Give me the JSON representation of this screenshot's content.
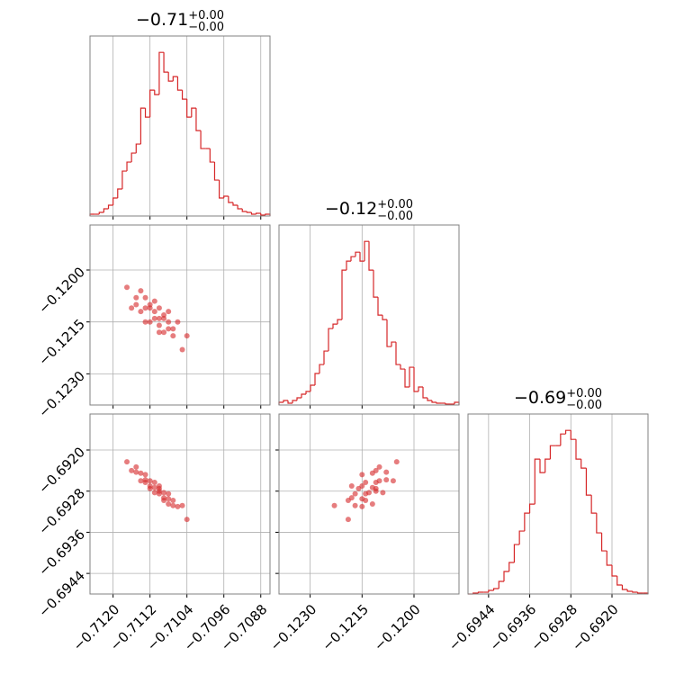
{
  "chart_data": {
    "type": "corner",
    "color": "#d62728",
    "grid": true,
    "params": [
      {
        "title": "−0.71",
        "err_plus": "+0.00",
        "err_minus": "−0.00",
        "lim": [
          -0.7125,
          -0.7086
        ],
        "ticks": [
          {
            "value": -0.712,
            "label": "−0.7120"
          },
          {
            "value": -0.7112,
            "label": "−0.7112"
          },
          {
            "value": -0.7104,
            "label": "−0.7104"
          },
          {
            "value": -0.7096,
            "label": "−0.7096"
          },
          {
            "value": -0.7088,
            "label": "−0.7088"
          }
        ],
        "bins": [
          -0.7125,
          -0.7124,
          -0.7123,
          -0.7122,
          -0.7121,
          -0.712,
          -0.7119,
          -0.7118,
          -0.7117,
          -0.7116,
          -0.7115,
          -0.7114,
          -0.7113,
          -0.7112,
          -0.7111,
          -0.711,
          -0.7109,
          -0.7108,
          -0.7107,
          -0.7106,
          -0.7105,
          -0.7104,
          -0.7103,
          -0.7102,
          -0.7101,
          -0.71,
          -0.7099,
          -0.7098,
          -0.7097,
          -0.7096,
          -0.7095,
          -0.7094,
          -0.7093,
          -0.7092,
          -0.7091,
          -0.709,
          -0.7089,
          -0.7088,
          -0.7087,
          -0.7086
        ],
        "counts": [
          2,
          2,
          4,
          8,
          12,
          20,
          30,
          50,
          60,
          70,
          80,
          120,
          110,
          140,
          135,
          182,
          160,
          150,
          155,
          140,
          130,
          110,
          120,
          95,
          75,
          75,
          60,
          40,
          20,
          22,
          15,
          12,
          8,
          5,
          4,
          2,
          3,
          1,
          2
        ],
        "samples": [
          -0.7117,
          -0.7116,
          -0.7115,
          -0.7115,
          -0.7114,
          -0.7114,
          -0.7113,
          -0.7113,
          -0.7113,
          -0.7112,
          -0.7112,
          -0.7112,
          -0.7111,
          -0.7111,
          -0.7111,
          -0.711,
          -0.711,
          -0.711,
          -0.711,
          -0.7109,
          -0.7109,
          -0.7109,
          -0.7108,
          -0.7108,
          -0.7108,
          -0.7107,
          -0.7107,
          -0.7106,
          -0.7105,
          -0.7104
        ]
      },
      {
        "title": "−0.12",
        "err_plus": "+0.00",
        "err_minus": "−0.00",
        "lim": [
          -0.1239,
          -0.1187
        ],
        "ticks": [
          {
            "value": -0.123,
            "label": "−0.1230"
          },
          {
            "value": -0.1215,
            "label": "−0.1215"
          },
          {
            "value": -0.12,
            "label": "−0.1200"
          }
        ],
        "bins": [
          -0.1239,
          -0.12377,
          -0.12364,
          -0.12351,
          -0.12338,
          -0.12325,
          -0.12312,
          -0.12299,
          -0.12286,
          -0.12273,
          -0.1226,
          -0.12247,
          -0.12234,
          -0.12221,
          -0.12208,
          -0.12195,
          -0.12182,
          -0.12169,
          -0.12156,
          -0.12143,
          -0.1213,
          -0.12117,
          -0.12104,
          -0.12091,
          -0.12078,
          -0.12065,
          -0.12052,
          -0.12039,
          -0.12026,
          -0.12013,
          -0.12,
          -0.11987,
          -0.11974,
          -0.11961,
          -0.11948,
          -0.11935,
          -0.11922,
          -0.11909,
          -0.11896,
          -0.11883,
          -0.1187
        ],
        "counts": [
          3,
          5,
          2,
          5,
          8,
          12,
          15,
          22,
          35,
          45,
          60,
          85,
          90,
          95,
          150,
          160,
          165,
          170,
          160,
          182,
          150,
          120,
          100,
          95,
          65,
          70,
          45,
          40,
          20,
          42,
          15,
          20,
          8,
          5,
          3,
          2,
          2,
          1,
          1,
          3
        ],
        "samples": [
          -0.1205,
          -0.1211,
          -0.1208,
          -0.121,
          -0.1206,
          -0.1212,
          -0.1211,
          -0.1208,
          -0.1215,
          -0.1211,
          -0.121,
          -0.1215,
          -0.1212,
          -0.1214,
          -0.1209,
          -0.1216,
          -0.1214,
          -0.1211,
          -0.1218,
          -0.1214,
          -0.1213,
          -0.1218,
          -0.1215,
          -0.1217,
          -0.1212,
          -0.1219,
          -0.1217,
          -0.1215,
          -0.1223,
          -0.1219
        ]
      },
      {
        "title": "−0.69",
        "err_plus": "+0.00",
        "err_minus": "−0.00",
        "lim": [
          -0.6948,
          -0.6913
        ],
        "ticks": [
          {
            "value": -0.6944,
            "label": "−0.6944"
          },
          {
            "value": -0.6936,
            "label": "−0.6936"
          },
          {
            "value": -0.6928,
            "label": "−0.6928"
          },
          {
            "value": -0.692,
            "label": "−0.6920"
          }
        ],
        "bins": [
          -0.6948,
          -0.6947,
          -0.6946,
          -0.6945,
          -0.6944,
          -0.6943,
          -0.6942,
          -0.6941,
          -0.694,
          -0.6939,
          -0.6938,
          -0.6937,
          -0.6936,
          -0.6935,
          -0.6934,
          -0.6933,
          -0.6932,
          -0.6931,
          -0.693,
          -0.6929,
          -0.6928,
          -0.6927,
          -0.6926,
          -0.6925,
          -0.6924,
          -0.6923,
          -0.6922,
          -0.6921,
          -0.692,
          -0.6919,
          -0.6918,
          -0.6917,
          -0.6916,
          -0.6915,
          -0.6914,
          -0.6913
        ],
        "counts": [
          0,
          1,
          2,
          2,
          4,
          6,
          14,
          25,
          35,
          55,
          70,
          90,
          100,
          150,
          135,
          150,
          165,
          165,
          178,
          182,
          172,
          150,
          140,
          110,
          90,
          68,
          48,
          32,
          20,
          10,
          5,
          3,
          2,
          1,
          1
        ],
        "samples": [
          -0.69223,
          -0.6924,
          -0.69243,
          -0.69233,
          -0.6926,
          -0.69245,
          -0.69263,
          -0.69258,
          -0.69248,
          -0.69275,
          -0.6926,
          -0.6927,
          -0.69273,
          -0.69263,
          -0.69283,
          -0.69275,
          -0.69285,
          -0.6928,
          -0.6927,
          -0.69298,
          -0.69283,
          -0.69293,
          -0.69295,
          -0.69285,
          -0.69305,
          -0.69298,
          -0.69308,
          -0.6931,
          -0.69308,
          -0.69335
        ]
      }
    ]
  }
}
